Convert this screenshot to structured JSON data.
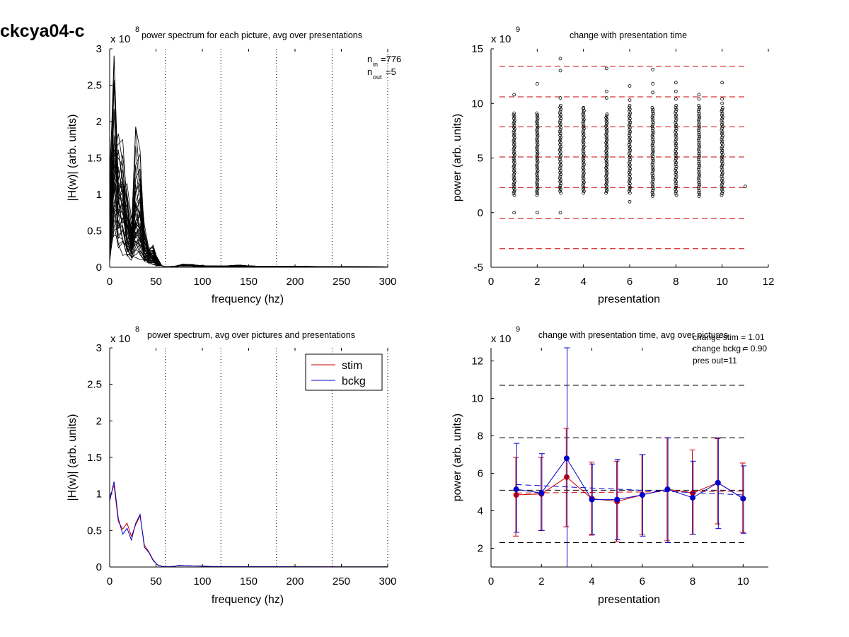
{
  "figure": {
    "title": "ckcya04-c"
  },
  "chart_data": [
    {
      "id": "p1",
      "type": "line",
      "title": "power spectrum for each picture, avg over presentations",
      "xlabel": "frequency (hz)",
      "ylabel": "|H(w)| (arb. units)",
      "xlim": [
        0,
        300
      ],
      "ylim": [
        0,
        3
      ],
      "y_multiplier": "x 10",
      "y_exponent": "8",
      "xticks": [
        "0",
        "50",
        "100",
        "150",
        "200",
        "250",
        "300"
      ],
      "yticks": [
        "0",
        "0.5",
        "1",
        "1.5",
        "2",
        "2.5",
        "3"
      ],
      "vlines_dotted": [
        60,
        120,
        180,
        240,
        300
      ],
      "annotations": {
        "n_in_label": "n",
        "n_in_sub": "in",
        "n_in_value": "=776",
        "n_out_label": "n",
        "n_out_sub": "out",
        "n_out_value": "=5"
      },
      "series_count": 40,
      "series_color": "#000000",
      "series": [
        {
          "name": "",
          "x": [
            0,
            4.7,
            9.4,
            14.1,
            18.8,
            23.4,
            28.1,
            32.8,
            37.5,
            42.2,
            46.9,
            51.6,
            56.3,
            60,
            70,
            80,
            90,
            100,
            120,
            140,
            160,
            200,
            250,
            300
          ],
          "y": [
            1.0,
            2.62,
            1.6,
            1.1,
            0.7,
            0.55,
            0.8,
            0.6,
            0.4,
            0.3,
            0.25,
            0.1,
            0.02,
            0.005,
            0.01,
            0.03,
            0.02,
            0.015,
            0.01,
            0.01,
            0.008,
            0.008,
            0.006,
            0.004
          ]
        },
        {
          "name": "",
          "x": [
            0,
            4.7,
            9.4,
            14.1,
            18.8,
            23.4,
            28.1,
            32.8,
            37.5,
            42.2,
            46.9,
            51.6,
            56.3,
            60,
            70,
            80,
            90,
            100,
            120,
            140,
            160,
            200,
            250,
            300
          ],
          "y": [
            0.35,
            2.45,
            1.7,
            1.3,
            0.9,
            0.65,
            1.65,
            1.25,
            0.45,
            0.3,
            0.22,
            0.08,
            0.02,
            0.005,
            0.01,
            0.03,
            0.025,
            0.015,
            0.012,
            0.02,
            0.01,
            0.01,
            0.006,
            0.004
          ]
        }
      ]
    },
    {
      "id": "p2",
      "type": "scatter",
      "title": "change with presentation time",
      "xlabel": "presentation",
      "ylabel": "power (arb. units)",
      "xlim": [
        0,
        12
      ],
      "ylim": [
        -5,
        15
      ],
      "y_multiplier": "x 10",
      "y_exponent": "9",
      "xticks": [
        "0",
        "2",
        "4",
        "6",
        "8",
        "10",
        "12"
      ],
      "yticks": [
        "-5",
        "0",
        "5",
        "10",
        "15"
      ],
      "hlines_dashed": [
        13.4,
        10.6,
        7.85,
        5.1,
        2.3,
        -0.55,
        -3.3
      ],
      "hline_color": "#cc0000",
      "marker": "open-circle",
      "column_ranges": [
        {
          "x": 1,
          "min": 1.6,
          "max": 9.1
        },
        {
          "x": 2,
          "min": 1.6,
          "max": 9.1
        },
        {
          "x": 3,
          "min": 1.8,
          "max": 9.8
        },
        {
          "x": 4,
          "min": 1.8,
          "max": 9.5
        },
        {
          "x": 5,
          "min": 1.8,
          "max": 9.0
        },
        {
          "x": 6,
          "min": 1.8,
          "max": 9.8
        },
        {
          "x": 7,
          "min": 1.5,
          "max": 9.6
        },
        {
          "x": 8,
          "min": 1.6,
          "max": 9.8
        },
        {
          "x": 9,
          "min": 1.5,
          "max": 9.8
        },
        {
          "x": 10,
          "min": 1.6,
          "max": 9.6
        }
      ],
      "outliers": [
        {
          "x": 1,
          "y": 10.8
        },
        {
          "x": 1,
          "y": 0.0
        },
        {
          "x": 2,
          "y": 11.8
        },
        {
          "x": 2,
          "y": 0.0
        },
        {
          "x": 3,
          "y": 14.1
        },
        {
          "x": 3,
          "y": 13.0
        },
        {
          "x": 3,
          "y": 10.5
        },
        {
          "x": 3,
          "y": 0.0
        },
        {
          "x": 4,
          "y": 9.6
        },
        {
          "x": 5,
          "y": 13.2
        },
        {
          "x": 5,
          "y": 11.1
        },
        {
          "x": 5,
          "y": 10.5
        },
        {
          "x": 6,
          "y": 11.6
        },
        {
          "x": 6,
          "y": 10.3
        },
        {
          "x": 6,
          "y": 1.0
        },
        {
          "x": 7,
          "y": 13.1
        },
        {
          "x": 7,
          "y": 11.8
        },
        {
          "x": 7,
          "y": 11.0
        },
        {
          "x": 8,
          "y": 11.9
        },
        {
          "x": 8,
          "y": 11.1
        },
        {
          "x": 8,
          "y": 10.4
        },
        {
          "x": 9,
          "y": 10.8
        },
        {
          "x": 9,
          "y": 10.4
        },
        {
          "x": 10,
          "y": 11.9
        },
        {
          "x": 10,
          "y": 10.4
        },
        {
          "x": 10,
          "y": 10.0
        },
        {
          "x": 11,
          "y": 2.4
        }
      ]
    },
    {
      "id": "p3",
      "type": "line",
      "title": "power spectrum, avg over pictures and presentations",
      "xlabel": "frequency (hz)",
      "ylabel": "|H(w)| (arb. units)",
      "xlim": [
        0,
        300
      ],
      "ylim": [
        0,
        3
      ],
      "y_multiplier": "x 10",
      "y_exponent": "8",
      "xticks": [
        "0",
        "50",
        "100",
        "150",
        "200",
        "250",
        "300"
      ],
      "yticks": [
        "0",
        "0.5",
        "1",
        "1.5",
        "2",
        "2.5",
        "3"
      ],
      "vlines_dotted": [
        60,
        120,
        180,
        240,
        300
      ],
      "legend": "top-right",
      "series": [
        {
          "name": "stim",
          "color": "#cc0000",
          "x": [
            0,
            4.7,
            9.4,
            14.1,
            18.8,
            23.4,
            28.1,
            32.8,
            37.5,
            42.2,
            46.9,
            51.6,
            56.3,
            60,
            65,
            70,
            75,
            80,
            90,
            100,
            110,
            120,
            150,
            200,
            250,
            300
          ],
          "y": [
            0.95,
            1.12,
            0.62,
            0.52,
            0.6,
            0.42,
            0.58,
            0.7,
            0.3,
            0.21,
            0.1,
            0.03,
            0.01,
            0.005,
            0.005,
            0.01,
            0.025,
            0.02,
            0.015,
            0.015,
            0.006,
            0.006,
            0.005,
            0.004,
            0.003,
            0.002
          ]
        },
        {
          "name": "bckg",
          "color": "#0000cc",
          "x": [
            0,
            4.7,
            9.4,
            14.1,
            18.8,
            23.4,
            28.1,
            32.8,
            37.5,
            42.2,
            46.9,
            51.6,
            56.3,
            60,
            65,
            70,
            75,
            80,
            90,
            100,
            110,
            120,
            150,
            200,
            250,
            300
          ],
          "y": [
            0.9,
            1.17,
            0.66,
            0.45,
            0.53,
            0.37,
            0.6,
            0.72,
            0.27,
            0.2,
            0.09,
            0.03,
            0.01,
            0.005,
            0.005,
            0.01,
            0.02,
            0.02,
            0.015,
            0.012,
            0.006,
            0.006,
            0.005,
            0.004,
            0.003,
            0.002
          ]
        }
      ]
    },
    {
      "id": "p4",
      "type": "line",
      "title": "change with presentation time, avg over pictures",
      "xlabel": "presentation",
      "ylabel": "power (arb. units)",
      "xlim": [
        0,
        11
      ],
      "ylim": [
        1,
        12.7
      ],
      "y_multiplier": "x 10",
      "y_exponent": "9",
      "xticks": [
        "0",
        "2",
        "4",
        "6",
        "8",
        "10"
      ],
      "yticks": [
        "2",
        "4",
        "6",
        "8",
        "10",
        "12"
      ],
      "hlines_dashed": [
        10.7,
        7.9,
        2.3
      ],
      "annotations": [
        "change stim = 1.01",
        "change bckg = 0.90",
        "pres out=11"
      ],
      "series": [
        {
          "name": "stim",
          "color": "#cc0000",
          "x": [
            1,
            2,
            3,
            4,
            5,
            6,
            7,
            8,
            9,
            10
          ],
          "y": [
            4.85,
            4.9,
            5.8,
            4.65,
            4.5,
            4.85,
            5.15,
            4.95,
            5.5,
            4.65
          ],
          "err_low": [
            2.65,
            2.95,
            3.15,
            2.7,
            2.35,
            2.75,
            2.4,
            2.75,
            3.3,
            2.85
          ],
          "err_high": [
            6.85,
            6.85,
            8.4,
            6.6,
            6.65,
            7.0,
            7.9,
            7.25,
            7.85,
            6.55
          ],
          "trend": [
            4.95,
            5.05
          ]
        },
        {
          "name": "bckg",
          "color": "#0000cc",
          "x": [
            1,
            2,
            3,
            4,
            5,
            6,
            7,
            8,
            9,
            10
          ],
          "y": [
            5.15,
            4.95,
            6.8,
            4.6,
            4.6,
            4.85,
            5.15,
            4.7,
            5.5,
            4.65
          ],
          "err_low": [
            2.85,
            2.95,
            1.0,
            2.75,
            2.45,
            2.65,
            2.3,
            2.75,
            3.05,
            2.8
          ],
          "err_high": [
            7.6,
            7.05,
            12.7,
            6.5,
            6.75,
            7.0,
            7.9,
            6.65,
            7.9,
            6.4
          ],
          "trend": [
            5.4,
            4.85
          ]
        }
      ],
      "mean_dashed": 5.1
    }
  ]
}
